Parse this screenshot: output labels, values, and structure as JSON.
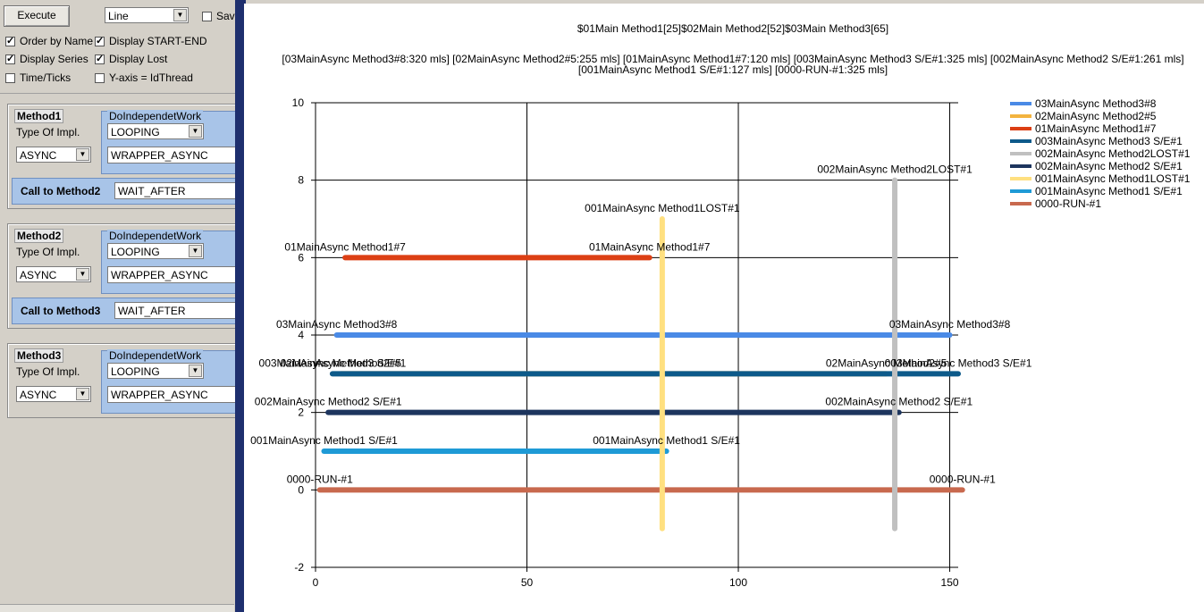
{
  "toolbar": {
    "execute_label": "Execute",
    "chart_type_value": "Line",
    "save_label": "Sav"
  },
  "options": {
    "order_by_name": {
      "label": "Order by Name",
      "checked": true
    },
    "display_start_end": {
      "label": "Display START-END",
      "checked": true
    },
    "display_series": {
      "label": "Display Series",
      "checked": true
    },
    "display_lost": {
      "label": "Display Lost",
      "checked": true
    },
    "time_ticks": {
      "label": "Time/Ticks",
      "checked": false
    },
    "y_axis_idthread": {
      "label": "Y-axis = IdThread",
      "checked": false
    }
  },
  "methods": [
    {
      "title": "Method1",
      "type_label": "Type Of Impl.",
      "type_value": "ASYNC",
      "work_title": "DoIndependetWork",
      "work_value": "LOOPING",
      "wrapper_value": "WRAPPER_ASYNC",
      "call_label": "Call to Method2",
      "call_value": "WAIT_AFTER"
    },
    {
      "title": "Method2",
      "type_label": "Type Of Impl.",
      "type_value": "ASYNC",
      "work_title": "DoIndependetWork",
      "work_value": "LOOPING",
      "wrapper_value": "WRAPPER_ASYNC",
      "call_label": "Call to Method3",
      "call_value": "WAIT_AFTER"
    },
    {
      "title": "Method3",
      "type_label": "Type Of Impl.",
      "type_value": "ASYNC",
      "work_title": "DoIndependetWork",
      "work_value": "LOOPING",
      "wrapper_value": "WRAPPER_ASYNC"
    }
  ],
  "chart_data": {
    "type": "line",
    "title": "$01Main Method1[25]$02Main Method2[52]$03Main Method3[65]",
    "subtitle_lines": [
      "[03MainAsync Method3#8:320 mls]    [02MainAsync Method2#5:255 mls]    [01MainAsync Method1#7:120 mls]    [003MainAsync Method3 S/E#1:325 mls]    [002MainAsync Method2 S/E#1:261 mls]",
      "[001MainAsync Method1 S/E#1:127 mls]    [0000-RUN-#1:325 mls]"
    ],
    "xlim": [
      0,
      152
    ],
    "ylim": [
      -2,
      10
    ],
    "x_ticks": [
      "0",
      "50",
      "100",
      "150"
    ],
    "x_tick_values": [
      0,
      50,
      100,
      150
    ],
    "y_ticks": [
      "10",
      "8",
      "6",
      "4",
      "2",
      "0",
      "-2"
    ],
    "y_tick_values": [
      10,
      8,
      6,
      4,
      2,
      0,
      -2
    ],
    "grid": true,
    "legend_position": "top-right",
    "series": [
      {
        "name": "03MainAsync Method3#8",
        "color": "#4a8ae6",
        "x": [
          5,
          150
        ],
        "y": [
          4,
          4
        ],
        "start_label": "03MainAsync Method3#8",
        "end_label": "03MainAsync Method3#8"
      },
      {
        "name": "02MainAsync Method2#5",
        "color": "#f3b33f",
        "x": [
          6,
          135
        ],
        "y": [
          3,
          3
        ],
        "start_label": "02MainAsync Method2#5",
        "end_label": "02MainAsync Method2#5"
      },
      {
        "name": "01MainAsync Method1#7",
        "color": "#dc3f14",
        "x": [
          7,
          79
        ],
        "y": [
          6,
          6
        ],
        "start_label": "01MainAsync Method1#7",
        "end_label": "01MainAsync Method1#7"
      },
      {
        "name": "003MainAsync Method3 S/E#1",
        "color": "#0d5a8a",
        "x": [
          4,
          152
        ],
        "y": [
          3,
          3
        ],
        "start_label": "003MainAsync Method3 S/E#1",
        "end_label": "003MainAsync Method3 S/E#1"
      },
      {
        "name": "002MainAsync Method2LOST#1",
        "color": "#c0c0c0",
        "x": [
          137,
          137
        ],
        "y": [
          8,
          -1
        ],
        "start_label": "002MainAsync Method2LOST#1",
        "end_label": ""
      },
      {
        "name": "002MainAsync Method2 S/E#1",
        "color": "#1d355e",
        "x": [
          3,
          138
        ],
        "y": [
          2,
          2
        ],
        "start_label": "002MainAsync Method2 S/E#1",
        "end_label": "002MainAsync Method2 S/E#1"
      },
      {
        "name": "001MainAsync Method1LOST#1",
        "color": "#ffe080",
        "x": [
          82,
          82
        ],
        "y": [
          7,
          -1
        ],
        "start_label": "001MainAsync Method1LOST#1",
        "end_label": ""
      },
      {
        "name": "001MainAsync Method1 S/E#1",
        "color": "#1e9ad6",
        "x": [
          2,
          83
        ],
        "y": [
          1,
          1
        ],
        "start_label": "001MainAsync Method1 S/E#1",
        "end_label": "001MainAsync Method1 S/E#1"
      },
      {
        "name": "0000-RUN-#1",
        "color": "#c8694e",
        "x": [
          1,
          153
        ],
        "y": [
          0,
          0
        ],
        "start_label": "0000-RUN-#1",
        "end_label": "0000-RUN-#1"
      }
    ]
  }
}
